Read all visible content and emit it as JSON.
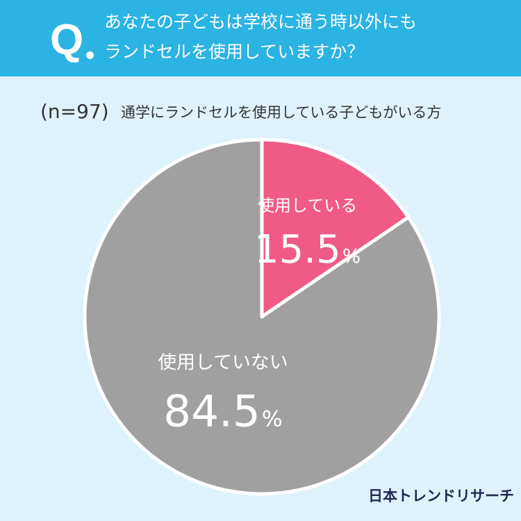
{
  "question": {
    "mark": "Q",
    "line1": "あなたの子どもは学校に通う時以外にも",
    "line2": "ランドセルを使用していますか？"
  },
  "subtitle": {
    "n": "(n=97)",
    "description": "通学にランドセルを使用している子どもがいる方"
  },
  "colors": {
    "header": "#2bb3e3",
    "background": "#ddf2fa",
    "using": "#f05a87",
    "not_using": "#a0a0a0"
  },
  "chart_data": {
    "type": "pie",
    "slices": [
      {
        "label": "使用している",
        "value": 15.5,
        "display": "15.5",
        "unit": "%"
      },
      {
        "label": "使用していない",
        "value": 84.5,
        "display": "84.5",
        "unit": "%"
      }
    ]
  },
  "brand": "日本トレンドリサーチ"
}
